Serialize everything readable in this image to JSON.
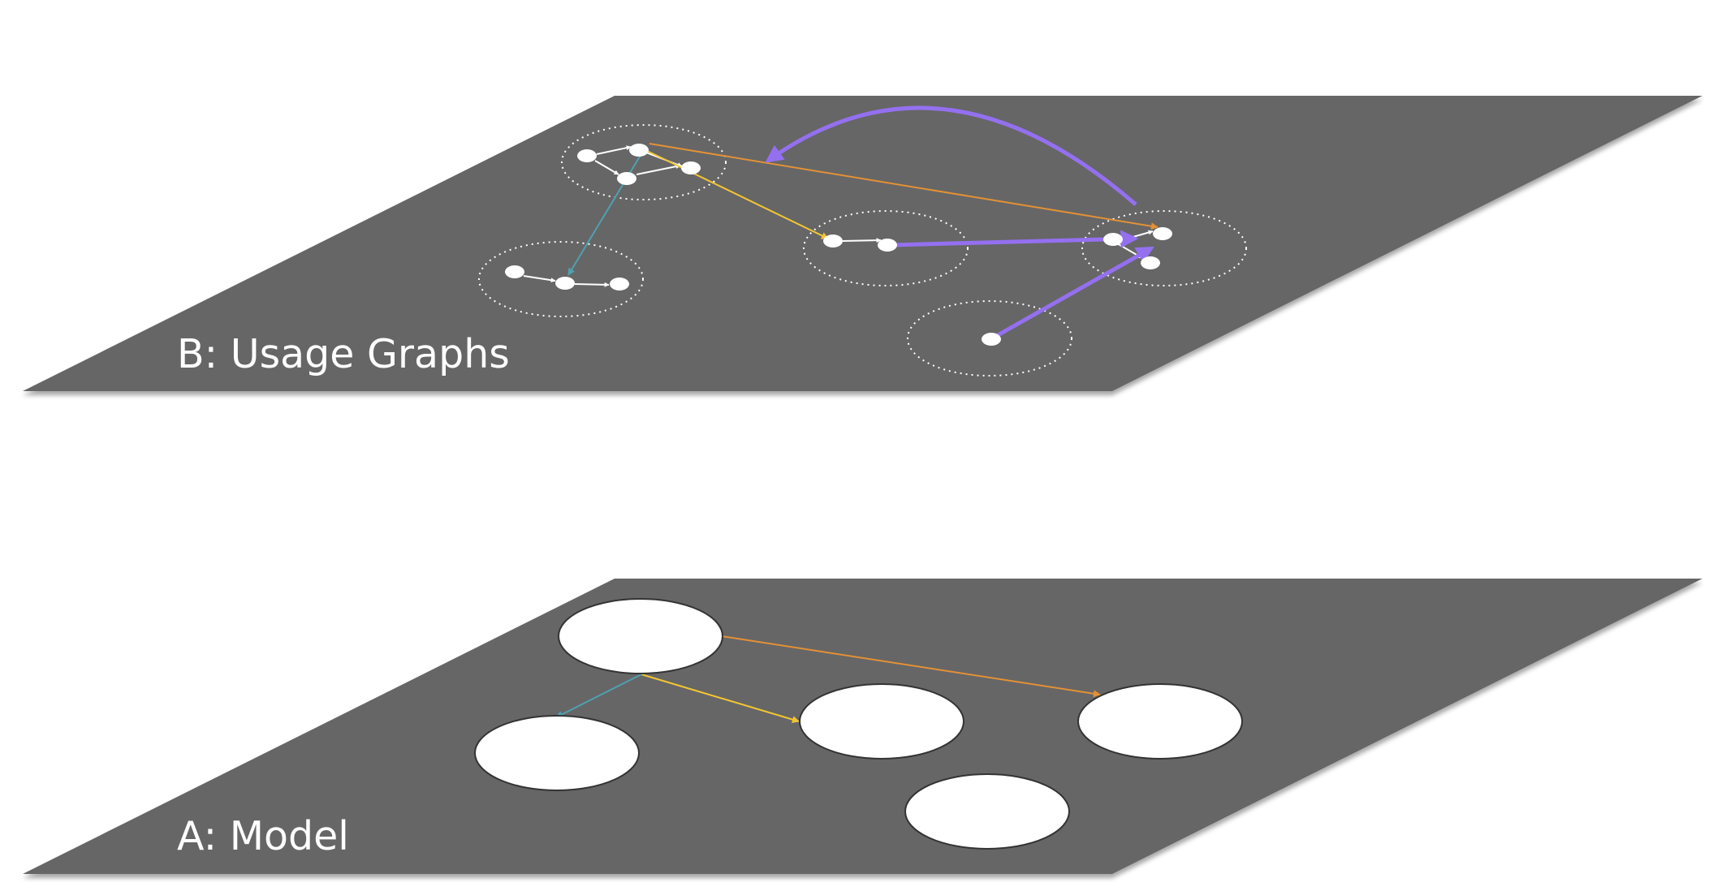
{
  "planes": {
    "usage": {
      "label": "B: Usage Graphs"
    },
    "model": {
      "label": "A: Model"
    }
  },
  "colors": {
    "background": "#ffffff",
    "plane": "#666666",
    "node_fill": "#ffffff",
    "node_stroke": "#333333",
    "cluster_outline": "#ffffff",
    "intra_edge": "#ffffff",
    "edge_orange": "#e39136",
    "edge_yellow": "#f2c534",
    "edge_teal": "#4fa1b0",
    "edge_purple": "#9470f0"
  },
  "diagram": {
    "model_nodes": [
      "a0",
      "a1",
      "a2",
      "a3",
      "a4"
    ],
    "model_edges": [
      {
        "from": "a0",
        "to": "a3",
        "color": "edge_orange"
      },
      {
        "from": "a0",
        "to": "a2",
        "color": "edge_yellow"
      },
      {
        "from": "a0",
        "to": "a1",
        "color": "edge_teal"
      }
    ],
    "usage_clusters": [
      "c0",
      "c1",
      "c2",
      "c3",
      "c4"
    ],
    "usage_edges": [
      {
        "from": "c0",
        "to": "c3",
        "color": "edge_orange"
      },
      {
        "from": "c0",
        "to": "c2",
        "color": "edge_yellow"
      },
      {
        "from": "c0",
        "to": "c1",
        "color": "edge_teal"
      },
      {
        "from": "c2",
        "to": "c3",
        "color": "edge_purple"
      },
      {
        "from": "c4",
        "to": "c3",
        "color": "edge_purple"
      },
      {
        "from": "c3",
        "to": "c0",
        "color": "edge_purple"
      }
    ]
  }
}
